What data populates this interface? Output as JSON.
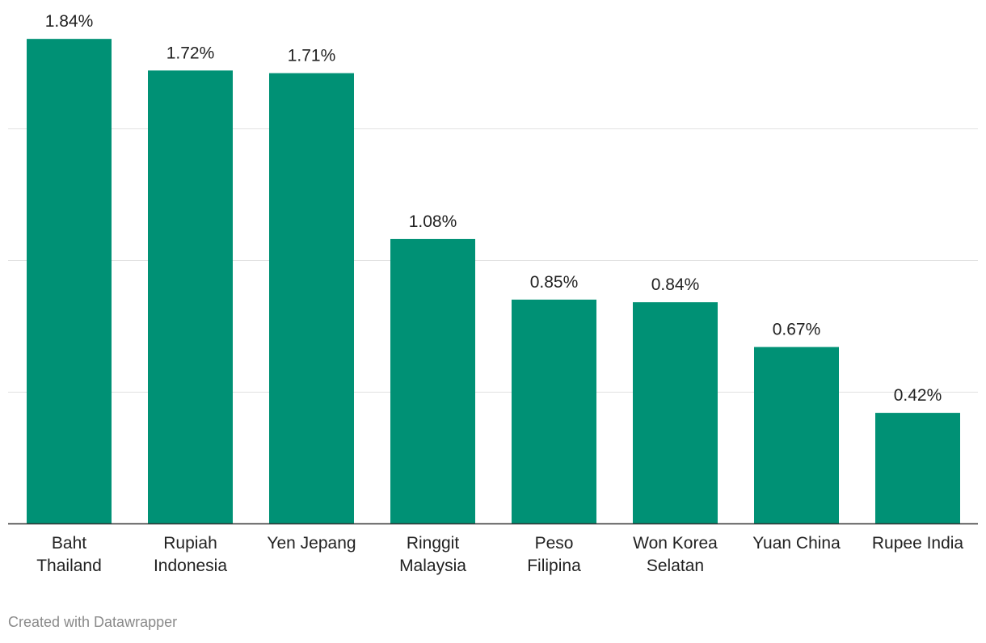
{
  "chart_data": {
    "type": "bar",
    "categories": [
      [
        "Baht",
        "Thailand"
      ],
      [
        "Rupiah",
        "Indonesia"
      ],
      [
        "Yen Jepang"
      ],
      [
        "Ringgit",
        "Malaysia"
      ],
      [
        "Peso",
        "Filipina"
      ],
      [
        "Won Korea",
        "Selatan"
      ],
      [
        "Yuan China"
      ],
      [
        "Rupee India"
      ]
    ],
    "values": [
      1.84,
      1.72,
      1.71,
      1.08,
      0.85,
      0.84,
      0.67,
      0.42
    ],
    "value_labels": [
      "1.84%",
      "1.72%",
      "1.71%",
      "1.08%",
      "0.85%",
      "0.84%",
      "0.67%",
      "0.42%"
    ],
    "title": "",
    "xlabel": "",
    "ylabel": "",
    "ylim": [
      0,
      2
    ],
    "gridlines": [
      0.5,
      1.0,
      1.5
    ],
    "grid": true,
    "bar_color": "#009175"
  },
  "footer": {
    "credit": "Created with Datawrapper"
  }
}
